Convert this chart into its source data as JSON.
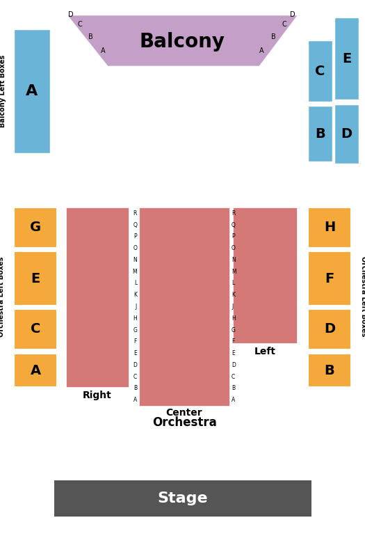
{
  "background_color": "#ffffff",
  "balcony_color": "#c4a0c8",
  "blue_color": "#6ab4d8",
  "orange_color": "#f5a93b",
  "red_color": "#d47878",
  "stage_color": "#555555",
  "balcony_label": "Balcony",
  "stage_label": "Stage",
  "center_label1": "Center",
  "center_label2": "Orchestra",
  "right_label": "Right",
  "left_label": "Left",
  "balcony_left_box_label": "Balcony Left Boxes",
  "balcony_right_box_label": "Balcony Left Boxes",
  "orchestra_left_box_label": "Orchestra Left Boxes",
  "orchestra_right_box_label": "Orchestra Left Boxes",
  "row_letters": [
    "R",
    "Q",
    "P",
    "O",
    "N",
    "M",
    "L",
    "K",
    "J",
    "H",
    "G",
    "F",
    "E",
    "D",
    "C",
    "B",
    "A"
  ]
}
